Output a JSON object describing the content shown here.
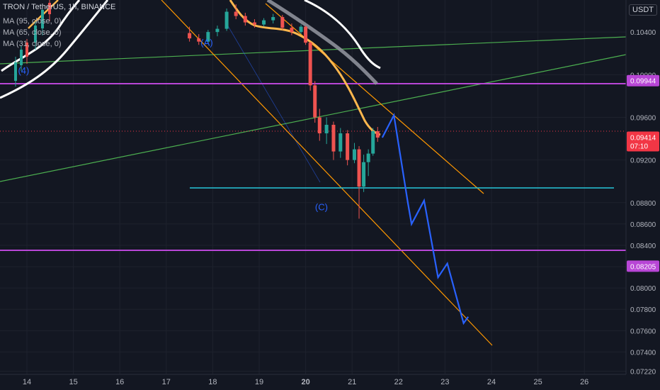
{
  "header": {
    "title": "TRON / TetherUS, 1h, BINANCE",
    "ma1": "MA (95, close, 0)",
    "ma2": "MA (65, close, 0)",
    "ma3": "MA (31, close, 0)"
  },
  "currency": "USDT",
  "chart_data": {
    "type": "candlestick",
    "symbol": "TRON / TetherUS",
    "timeframe": "1h",
    "exchange": "BINANCE",
    "x_ticks": [
      "14",
      "15",
      "16",
      "17",
      "18",
      "19",
      "20",
      "21",
      "22",
      "23",
      "24",
      "25",
      "26"
    ],
    "y_ticks": [
      "0.10400",
      "0.10000",
      "0.09600",
      "0.09200",
      "0.08800",
      "0.08600",
      "0.08400",
      "0.08200",
      "0.08000",
      "0.07800",
      "0.07600",
      "0.07400",
      "0.07220"
    ],
    "ylim": [
      0.0719,
      0.107
    ],
    "xlim": [
      13.5,
      27.2
    ],
    "price_labels": [
      {
        "text": "0.09944",
        "value": 0.09944,
        "color": "#b846d6"
      },
      {
        "text": "0.09414",
        "sub": "07:10",
        "value": 0.09414,
        "color": "#f23645"
      },
      {
        "text": "0.08205",
        "value": 0.08205,
        "color": "#b846d6"
      }
    ],
    "wave_labels": [
      {
        "text": "(4)",
        "x": 13.93,
        "y": 0.1001
      },
      {
        "text": "(A)",
        "x": 17.87,
        "y": 0.1027
      },
      {
        "text": "(C)",
        "x": 20.34,
        "y": 0.0873
      }
    ],
    "projection_path": [
      [
        21.65,
        0.0941
      ],
      [
        21.9,
        0.0962
      ],
      [
        22.2,
        0.088
      ],
      [
        22.28,
        0.086
      ],
      [
        22.55,
        0.0882
      ],
      [
        22.85,
        0.081
      ],
      [
        23.05,
        0.0823
      ],
      [
        23.4,
        0.0767
      ],
      [
        23.5,
        0.0773
      ]
    ],
    "candles": [
      {
        "t": 17.5,
        "o": 0.1039,
        "h": 0.1045,
        "l": 0.1031,
        "c": 0.1034
      },
      {
        "t": 17.7,
        "o": 0.1034,
        "h": 0.1038,
        "l": 0.1028,
        "c": 0.1031
      },
      {
        "t": 17.9,
        "o": 0.1031,
        "h": 0.1042,
        "l": 0.1029,
        "c": 0.104
      },
      {
        "t": 18.1,
        "o": 0.104,
        "h": 0.1046,
        "l": 0.1036,
        "c": 0.1043
      },
      {
        "t": 18.3,
        "o": 0.1043,
        "h": 0.1062,
        "l": 0.1041,
        "c": 0.1059
      },
      {
        "t": 18.5,
        "o": 0.1059,
        "h": 0.1066,
        "l": 0.1052,
        "c": 0.1055
      },
      {
        "t": 18.7,
        "o": 0.1055,
        "h": 0.1058,
        "l": 0.1046,
        "c": 0.1049
      },
      {
        "t": 18.9,
        "o": 0.1049,
        "h": 0.1052,
        "l": 0.1044,
        "c": 0.1047
      },
      {
        "t": 19.1,
        "o": 0.1047,
        "h": 0.1053,
        "l": 0.1045,
        "c": 0.1051
      },
      {
        "t": 19.3,
        "o": 0.1051,
        "h": 0.1057,
        "l": 0.1048,
        "c": 0.1054
      },
      {
        "t": 19.5,
        "o": 0.1054,
        "h": 0.1056,
        "l": 0.1042,
        "c": 0.1044
      },
      {
        "t": 19.7,
        "o": 0.1044,
        "h": 0.1048,
        "l": 0.1037,
        "c": 0.104
      },
      {
        "t": 19.9,
        "o": 0.104,
        "h": 0.1047,
        "l": 0.1038,
        "c": 0.1045
      },
      {
        "t": 20.0,
        "o": 0.1045,
        "h": 0.1046,
        "l": 0.1028,
        "c": 0.103
      },
      {
        "t": 20.1,
        "o": 0.103,
        "h": 0.1031,
        "l": 0.0985,
        "c": 0.099
      },
      {
        "t": 20.2,
        "o": 0.099,
        "h": 0.0994,
        "l": 0.0955,
        "c": 0.096
      },
      {
        "t": 20.3,
        "o": 0.096,
        "h": 0.0968,
        "l": 0.0938,
        "c": 0.0945
      },
      {
        "t": 20.45,
        "o": 0.0945,
        "h": 0.096,
        "l": 0.0935,
        "c": 0.0953
      },
      {
        "t": 20.6,
        "o": 0.0953,
        "h": 0.0956,
        "l": 0.092,
        "c": 0.0928
      },
      {
        "t": 20.75,
        "o": 0.0928,
        "h": 0.095,
        "l": 0.0922,
        "c": 0.0945
      },
      {
        "t": 20.9,
        "o": 0.0945,
        "h": 0.0948,
        "l": 0.0915,
        "c": 0.092
      },
      {
        "t": 21.05,
        "o": 0.092,
        "h": 0.0936,
        "l": 0.0917,
        "c": 0.093
      },
      {
        "t": 21.15,
        "o": 0.093,
        "h": 0.0933,
        "l": 0.0865,
        "c": 0.0895
      },
      {
        "t": 21.25,
        "o": 0.0895,
        "h": 0.0925,
        "l": 0.089,
        "c": 0.0918
      },
      {
        "t": 21.35,
        "o": 0.0918,
        "h": 0.093,
        "l": 0.0905,
        "c": 0.0926
      },
      {
        "t": 21.45,
        "o": 0.0926,
        "h": 0.095,
        "l": 0.0924,
        "c": 0.0947
      },
      {
        "t": 21.55,
        "o": 0.0947,
        "h": 0.0951,
        "l": 0.0937,
        "c": 0.0941
      }
    ]
  }
}
